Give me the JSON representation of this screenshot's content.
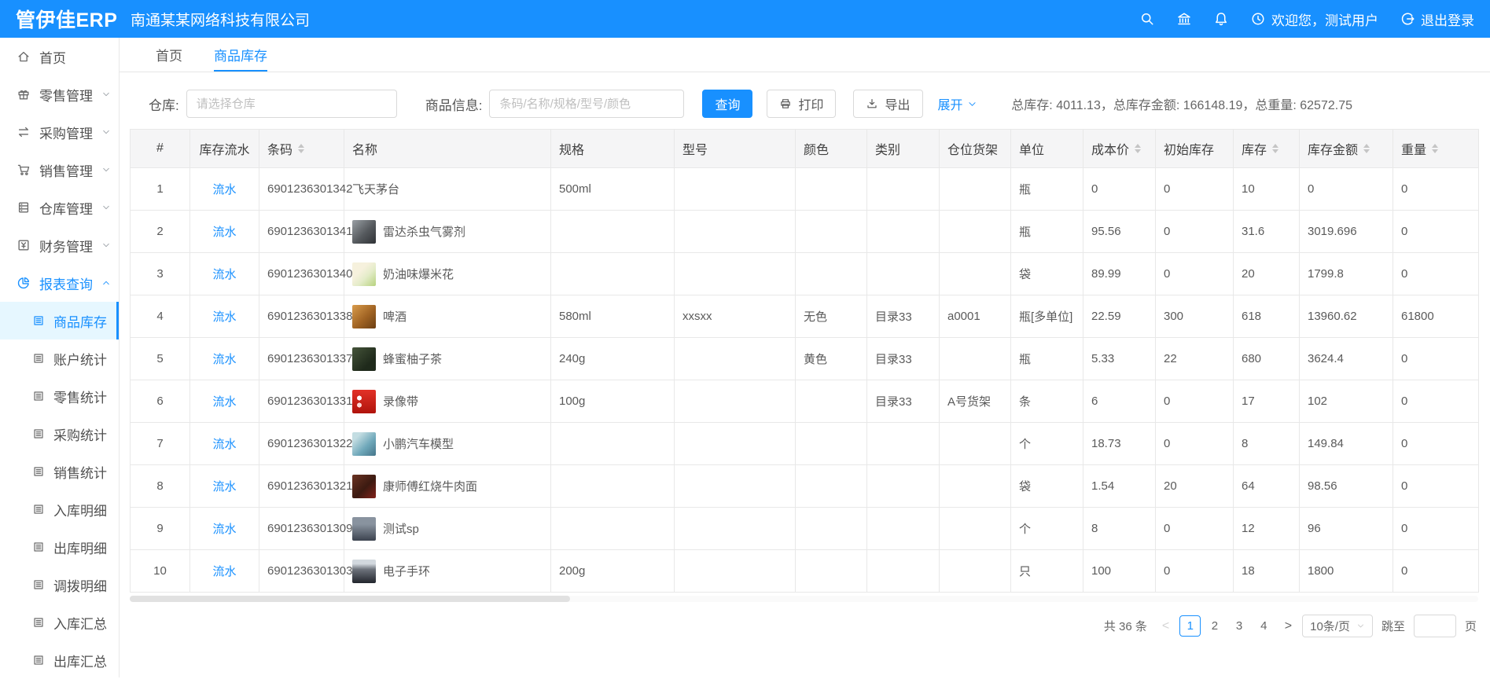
{
  "colors": {
    "primary": "#1890ff",
    "active_bg": "#e6f7ff",
    "topbar_bg": "#1890ff"
  },
  "topbar": {
    "logo": "管伊佳ERP",
    "company": "南通某某网络科技有限公司",
    "icons": [
      "search-icon",
      "bank-icon",
      "bell-icon"
    ],
    "welcome": "欢迎您，测试用户",
    "logout": "退出登录"
  },
  "sidebar": {
    "items": [
      {
        "label": "首页",
        "icon": "home-icon"
      },
      {
        "label": "零售管理",
        "icon": "gift-icon",
        "chevron": "down"
      },
      {
        "label": "采购管理",
        "icon": "swap-icon",
        "chevron": "down"
      },
      {
        "label": "销售管理",
        "icon": "cart-icon",
        "chevron": "down"
      },
      {
        "label": "仓库管理",
        "icon": "database-icon",
        "chevron": "down"
      },
      {
        "label": "财务管理",
        "icon": "money-icon",
        "chevron": "down"
      },
      {
        "label": "报表查询",
        "icon": "pie-chart-icon",
        "chevron": "up",
        "active": true,
        "children": [
          {
            "label": "商品库存",
            "icon": "report-icon",
            "active": true
          },
          {
            "label": "账户统计",
            "icon": "report-icon"
          },
          {
            "label": "零售统计",
            "icon": "report-icon"
          },
          {
            "label": "采购统计",
            "icon": "report-icon"
          },
          {
            "label": "销售统计",
            "icon": "report-icon"
          },
          {
            "label": "入库明细",
            "icon": "report-icon"
          },
          {
            "label": "出库明细",
            "icon": "report-icon"
          },
          {
            "label": "调拨明细",
            "icon": "report-icon"
          },
          {
            "label": "入库汇总",
            "icon": "report-icon"
          },
          {
            "label": "出库汇总",
            "icon": "report-icon"
          }
        ]
      }
    ]
  },
  "tabs": [
    {
      "label": "首页",
      "active": false
    },
    {
      "label": "商品库存",
      "active": true
    }
  ],
  "toolbar": {
    "warehouse_label": "仓库:",
    "warehouse_placeholder": "请选择仓库",
    "product_label": "商品信息:",
    "product_placeholder": "条码/名称/规格/型号/颜色",
    "search": "查询",
    "print": "打印",
    "export": "导出",
    "expand": "展开",
    "summary": "总库存: 4011.13，总库存金额: 166148.19，总重量: 62572.75"
  },
  "table": {
    "columns": [
      {
        "key": "idx",
        "label": "#",
        "sortable": false,
        "center": true
      },
      {
        "key": "flow",
        "label": "库存流水",
        "sortable": false,
        "center": true
      },
      {
        "key": "barcode",
        "label": "条码",
        "sortable": true
      },
      {
        "key": "name",
        "label": "名称",
        "sortable": false
      },
      {
        "key": "spec",
        "label": "规格",
        "sortable": false
      },
      {
        "key": "model",
        "label": "型号",
        "sortable": false
      },
      {
        "key": "color",
        "label": "颜色",
        "sortable": false
      },
      {
        "key": "category",
        "label": "类别",
        "sortable": false
      },
      {
        "key": "shelf",
        "label": "仓位货架",
        "sortable": false
      },
      {
        "key": "unit",
        "label": "单位",
        "sortable": false
      },
      {
        "key": "cost",
        "label": "成本价",
        "sortable": true
      },
      {
        "key": "init_stock",
        "label": "初始库存",
        "sortable": false
      },
      {
        "key": "stock",
        "label": "库存",
        "sortable": true
      },
      {
        "key": "amount",
        "label": "库存金额",
        "sortable": true
      },
      {
        "key": "weight",
        "label": "重量",
        "sortable": true
      }
    ],
    "rows": [
      {
        "idx": "1",
        "flow": "流水",
        "barcode": "6901236301342",
        "thumb": null,
        "name": "飞天茅台",
        "spec": "500ml",
        "model": "",
        "color": "",
        "category": "",
        "shelf": "",
        "unit": "瓶",
        "cost": "0",
        "init_stock": "0",
        "stock": "10",
        "amount": "0",
        "weight": "0"
      },
      {
        "idx": "2",
        "flow": "流水",
        "barcode": "6901236301341",
        "thumb": "spray",
        "name": "雷达杀虫气雾剂",
        "spec": "",
        "model": "",
        "color": "",
        "category": "",
        "shelf": "",
        "unit": "瓶",
        "cost": "95.56",
        "init_stock": "0",
        "stock": "31.6",
        "amount": "3019.696",
        "weight": "0"
      },
      {
        "idx": "3",
        "flow": "流水",
        "barcode": "6901236301340",
        "thumb": "popcorn",
        "name": "奶油味爆米花",
        "spec": "",
        "model": "",
        "color": "",
        "category": "",
        "shelf": "",
        "unit": "袋",
        "cost": "89.99",
        "init_stock": "0",
        "stock": "20",
        "amount": "1799.8",
        "weight": "0"
      },
      {
        "idx": "4",
        "flow": "流水",
        "barcode": "6901236301338",
        "thumb": "beer",
        "name": "啤酒",
        "spec": "580ml",
        "model": "xxsxx",
        "color": "无色",
        "category": "目录33",
        "shelf": "a0001",
        "unit": "瓶[多单位]",
        "cost": "22.59",
        "init_stock": "300",
        "stock": "618",
        "amount": "13960.62",
        "weight": "61800"
      },
      {
        "idx": "5",
        "flow": "流水",
        "barcode": "6901236301337",
        "thumb": "tea",
        "name": "蜂蜜柚子茶",
        "spec": "240g",
        "model": "",
        "color": "黄色",
        "category": "目录33",
        "shelf": "",
        "unit": "瓶",
        "cost": "5.33",
        "init_stock": "22",
        "stock": "680",
        "amount": "3624.4",
        "weight": "0"
      },
      {
        "idx": "6",
        "flow": "流水",
        "barcode": "6901236301331",
        "thumb": "tape",
        "name": "录像带",
        "spec": "100g",
        "model": "",
        "color": "",
        "category": "目录33",
        "shelf": "A号货架",
        "unit": "条",
        "cost": "6",
        "init_stock": "0",
        "stock": "17",
        "amount": "102",
        "weight": "0"
      },
      {
        "idx": "7",
        "flow": "流水",
        "barcode": "6901236301322",
        "thumb": "car",
        "name": "小鹏汽车模型",
        "spec": "",
        "model": "",
        "color": "",
        "category": "",
        "shelf": "",
        "unit": "个",
        "cost": "18.73",
        "init_stock": "0",
        "stock": "8",
        "amount": "149.84",
        "weight": "0"
      },
      {
        "idx": "8",
        "flow": "流水",
        "barcode": "6901236301321",
        "thumb": "noodle",
        "name": "康师傅红烧牛肉面",
        "spec": "",
        "model": "",
        "color": "",
        "category": "",
        "shelf": "",
        "unit": "袋",
        "cost": "1.54",
        "init_stock": "20",
        "stock": "64",
        "amount": "98.56",
        "weight": "0"
      },
      {
        "idx": "9",
        "flow": "流水",
        "barcode": "6901236301309",
        "thumb": "person",
        "name": "测试sp",
        "spec": "",
        "model": "",
        "color": "",
        "category": "",
        "shelf": "",
        "unit": "个",
        "cost": "8",
        "init_stock": "0",
        "stock": "12",
        "amount": "96",
        "weight": "0"
      },
      {
        "idx": "10",
        "flow": "流水",
        "barcode": "6901236301303",
        "thumb": "watch",
        "name": "电子手环",
        "spec": "200g",
        "model": "",
        "color": "",
        "category": "",
        "shelf": "",
        "unit": "只",
        "cost": "100",
        "init_stock": "0",
        "stock": "18",
        "amount": "1800",
        "weight": "0"
      }
    ]
  },
  "pagination": {
    "total": "共 36 条",
    "prev": "<",
    "next": ">",
    "pages": [
      "1",
      "2",
      "3",
      "4"
    ],
    "current": "1",
    "page_size": "10条/页",
    "jump_prefix": "跳至",
    "jump_suffix": "页"
  }
}
